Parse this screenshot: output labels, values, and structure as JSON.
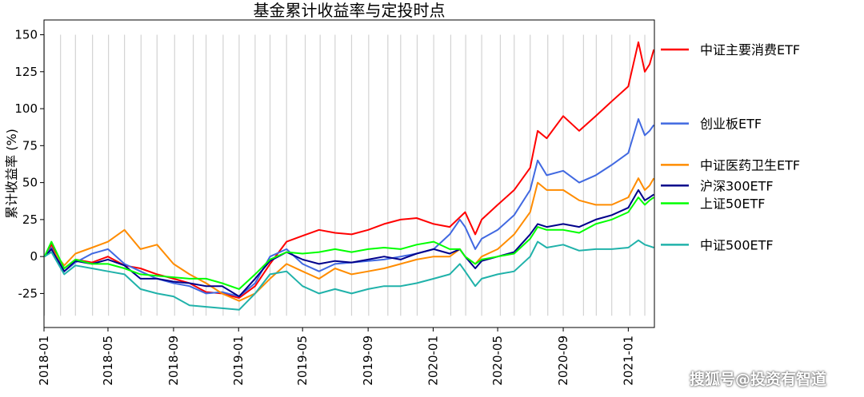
{
  "watermark": "搜狐号@投资有智道",
  "chart_data": {
    "type": "line",
    "title": "基金累计收益率与定投时点",
    "xlabel": "",
    "ylabel": "累计收益率 (%)",
    "xlim": [
      "2018-01-01",
      "2021-02-19"
    ],
    "ylim": [
      -48,
      160
    ],
    "yticks": [
      -25,
      0,
      25,
      50,
      75,
      100,
      125,
      150
    ],
    "xticks": [
      "2018-01",
      "2018-05",
      "2018-09",
      "2019-01",
      "2019-05",
      "2019-09",
      "2020-01",
      "2020-05",
      "2020-09",
      "2021-01"
    ],
    "grid": false,
    "legend": "right",
    "invest_lines": [
      "2018-01-02",
      "2018-02-01",
      "2018-03-01",
      "2018-04-02",
      "2018-05-02",
      "2018-06-01",
      "2018-07-02",
      "2018-08-01",
      "2018-09-03",
      "2018-10-08",
      "2018-11-01",
      "2018-12-03",
      "2019-01-02",
      "2019-02-01",
      "2019-03-01",
      "2019-04-01",
      "2019-05-06",
      "2019-06-03",
      "2019-07-01",
      "2019-08-01",
      "2019-09-02",
      "2019-10-08",
      "2019-11-01",
      "2019-12-02",
      "2020-01-02",
      "2020-02-03",
      "2020-03-02",
      "2020-04-01",
      "2020-05-06",
      "2020-06-01",
      "2020-07-01",
      "2020-08-03",
      "2020-09-01",
      "2020-10-09",
      "2020-11-02",
      "2020-12-01",
      "2021-01-04",
      "2021-02-01"
    ],
    "invest_line_range": [
      -40,
      150
    ],
    "series": [
      {
        "name": "中证主要消费ETF",
        "color": "#ff0000",
        "legend_y": 140,
        "points": [
          [
            "2018-01-02",
            0
          ],
          [
            "2018-01-15",
            8
          ],
          [
            "2018-02-08",
            -8
          ],
          [
            "2018-03-01",
            -2
          ],
          [
            "2018-04-01",
            -4
          ],
          [
            "2018-05-01",
            0
          ],
          [
            "2018-06-01",
            -6
          ],
          [
            "2018-07-01",
            -8
          ],
          [
            "2018-08-01",
            -12
          ],
          [
            "2018-09-01",
            -15
          ],
          [
            "2018-10-01",
            -18
          ],
          [
            "2018-11-01",
            -24
          ],
          [
            "2018-12-01",
            -25
          ],
          [
            "2019-01-02",
            -28
          ],
          [
            "2019-02-01",
            -20
          ],
          [
            "2019-03-01",
            -5
          ],
          [
            "2019-04-01",
            10
          ],
          [
            "2019-05-01",
            14
          ],
          [
            "2019-06-01",
            18
          ],
          [
            "2019-07-01",
            16
          ],
          [
            "2019-08-01",
            15
          ],
          [
            "2019-09-01",
            18
          ],
          [
            "2019-10-01",
            22
          ],
          [
            "2019-11-01",
            25
          ],
          [
            "2019-12-01",
            26
          ],
          [
            "2020-01-02",
            22
          ],
          [
            "2020-02-01",
            20
          ],
          [
            "2020-03-01",
            30
          ],
          [
            "2020-03-20",
            15
          ],
          [
            "2020-04-01",
            25
          ],
          [
            "2020-05-01",
            35
          ],
          [
            "2020-06-01",
            45
          ],
          [
            "2020-07-01",
            60
          ],
          [
            "2020-07-15",
            85
          ],
          [
            "2020-08-01",
            80
          ],
          [
            "2020-09-01",
            95
          ],
          [
            "2020-10-01",
            85
          ],
          [
            "2020-11-01",
            95
          ],
          [
            "2020-12-01",
            105
          ],
          [
            "2021-01-01",
            115
          ],
          [
            "2021-01-20",
            145
          ],
          [
            "2021-02-01",
            125
          ],
          [
            "2021-02-10",
            130
          ],
          [
            "2021-02-18",
            140
          ]
        ]
      },
      {
        "name": "创业板ETF",
        "color": "#4169e1",
        "legend_y": 90,
        "points": [
          [
            "2018-01-02",
            0
          ],
          [
            "2018-01-15",
            6
          ],
          [
            "2018-02-08",
            -10
          ],
          [
            "2018-03-01",
            -4
          ],
          [
            "2018-04-01",
            2
          ],
          [
            "2018-05-01",
            5
          ],
          [
            "2018-06-01",
            -5
          ],
          [
            "2018-07-01",
            -10
          ],
          [
            "2018-08-01",
            -15
          ],
          [
            "2018-09-01",
            -18
          ],
          [
            "2018-10-01",
            -20
          ],
          [
            "2018-11-01",
            -25
          ],
          [
            "2018-12-01",
            -24
          ],
          [
            "2019-01-02",
            -27
          ],
          [
            "2019-02-01",
            -18
          ],
          [
            "2019-03-01",
            0
          ],
          [
            "2019-04-01",
            5
          ],
          [
            "2019-05-01",
            -5
          ],
          [
            "2019-06-01",
            -10
          ],
          [
            "2019-07-01",
            -5
          ],
          [
            "2019-08-01",
            -4
          ],
          [
            "2019-09-01",
            -3
          ],
          [
            "2019-10-01",
            -2
          ],
          [
            "2019-11-01",
            0
          ],
          [
            "2019-12-01",
            2
          ],
          [
            "2020-01-02",
            5
          ],
          [
            "2020-02-01",
            15
          ],
          [
            "2020-02-20",
            25
          ],
          [
            "2020-03-01",
            20
          ],
          [
            "2020-03-20",
            5
          ],
          [
            "2020-04-01",
            12
          ],
          [
            "2020-05-01",
            18
          ],
          [
            "2020-06-01",
            28
          ],
          [
            "2020-07-01",
            45
          ],
          [
            "2020-07-15",
            65
          ],
          [
            "2020-08-01",
            55
          ],
          [
            "2020-09-01",
            58
          ],
          [
            "2020-10-01",
            50
          ],
          [
            "2020-11-01",
            55
          ],
          [
            "2020-12-01",
            62
          ],
          [
            "2021-01-01",
            70
          ],
          [
            "2021-01-20",
            93
          ],
          [
            "2021-02-01",
            82
          ],
          [
            "2021-02-10",
            85
          ],
          [
            "2021-02-18",
            89
          ]
        ]
      },
      {
        "name": "中证医药卫生ETF",
        "color": "#ff8c00",
        "legend_y": 62,
        "points": [
          [
            "2018-01-02",
            0
          ],
          [
            "2018-01-15",
            5
          ],
          [
            "2018-02-08",
            -6
          ],
          [
            "2018-03-01",
            2
          ],
          [
            "2018-04-01",
            6
          ],
          [
            "2018-05-01",
            10
          ],
          [
            "2018-06-01",
            18
          ],
          [
            "2018-07-01",
            5
          ],
          [
            "2018-08-01",
            8
          ],
          [
            "2018-09-01",
            -5
          ],
          [
            "2018-10-01",
            -12
          ],
          [
            "2018-11-01",
            -18
          ],
          [
            "2018-12-01",
            -25
          ],
          [
            "2019-01-02",
            -30
          ],
          [
            "2019-02-01",
            -25
          ],
          [
            "2019-03-01",
            -15
          ],
          [
            "2019-04-01",
            -5
          ],
          [
            "2019-05-01",
            -10
          ],
          [
            "2019-06-01",
            -15
          ],
          [
            "2019-07-01",
            -8
          ],
          [
            "2019-08-01",
            -12
          ],
          [
            "2019-09-01",
            -10
          ],
          [
            "2019-10-01",
            -8
          ],
          [
            "2019-11-01",
            -5
          ],
          [
            "2019-12-01",
            -2
          ],
          [
            "2020-01-02",
            0
          ],
          [
            "2020-02-01",
            0
          ],
          [
            "2020-02-20",
            5
          ],
          [
            "2020-03-01",
            0
          ],
          [
            "2020-03-20",
            -5
          ],
          [
            "2020-04-01",
            0
          ],
          [
            "2020-05-01",
            5
          ],
          [
            "2020-06-01",
            15
          ],
          [
            "2020-07-01",
            30
          ],
          [
            "2020-07-15",
            50
          ],
          [
            "2020-08-01",
            45
          ],
          [
            "2020-09-01",
            45
          ],
          [
            "2020-10-01",
            38
          ],
          [
            "2020-11-01",
            35
          ],
          [
            "2020-12-01",
            35
          ],
          [
            "2021-01-01",
            40
          ],
          [
            "2021-01-20",
            53
          ],
          [
            "2021-02-01",
            45
          ],
          [
            "2021-02-10",
            48
          ],
          [
            "2021-02-18",
            53
          ]
        ]
      },
      {
        "name": "沪深300ETF",
        "color": "#00008b",
        "legend_y": 48,
        "points": [
          [
            "2018-01-02",
            0
          ],
          [
            "2018-01-15",
            5
          ],
          [
            "2018-02-08",
            -10
          ],
          [
            "2018-03-01",
            -3
          ],
          [
            "2018-04-01",
            -5
          ],
          [
            "2018-05-01",
            -2
          ],
          [
            "2018-06-01",
            -6
          ],
          [
            "2018-07-01",
            -15
          ],
          [
            "2018-08-01",
            -15
          ],
          [
            "2018-09-01",
            -17
          ],
          [
            "2018-10-01",
            -18
          ],
          [
            "2018-11-01",
            -20
          ],
          [
            "2018-12-01",
            -20
          ],
          [
            "2019-01-02",
            -27
          ],
          [
            "2019-02-01",
            -15
          ],
          [
            "2019-03-01",
            -3
          ],
          [
            "2019-04-01",
            3
          ],
          [
            "2019-05-01",
            -2
          ],
          [
            "2019-06-01",
            -5
          ],
          [
            "2019-07-01",
            -3
          ],
          [
            "2019-08-01",
            -4
          ],
          [
            "2019-09-01",
            -2
          ],
          [
            "2019-10-01",
            0
          ],
          [
            "2019-11-01",
            -2
          ],
          [
            "2019-12-01",
            2
          ],
          [
            "2020-01-02",
            5
          ],
          [
            "2020-02-01",
            2
          ],
          [
            "2020-02-20",
            5
          ],
          [
            "2020-03-01",
            0
          ],
          [
            "2020-03-20",
            -8
          ],
          [
            "2020-04-01",
            -3
          ],
          [
            "2020-05-01",
            0
          ],
          [
            "2020-06-01",
            3
          ],
          [
            "2020-07-01",
            15
          ],
          [
            "2020-07-15",
            22
          ],
          [
            "2020-08-01",
            20
          ],
          [
            "2020-09-01",
            22
          ],
          [
            "2020-10-01",
            20
          ],
          [
            "2020-11-01",
            25
          ],
          [
            "2020-12-01",
            28
          ],
          [
            "2021-01-01",
            33
          ],
          [
            "2021-01-20",
            45
          ],
          [
            "2021-02-01",
            38
          ],
          [
            "2021-02-10",
            40
          ],
          [
            "2021-02-18",
            42
          ]
        ]
      },
      {
        "name": "上证50ETF",
        "color": "#00ff00",
        "legend_y": 36,
        "points": [
          [
            "2018-01-02",
            0
          ],
          [
            "2018-01-15",
            10
          ],
          [
            "2018-02-08",
            -8
          ],
          [
            "2018-03-01",
            -2
          ],
          [
            "2018-04-01",
            -5
          ],
          [
            "2018-05-01",
            -5
          ],
          [
            "2018-06-01",
            -8
          ],
          [
            "2018-07-01",
            -12
          ],
          [
            "2018-08-01",
            -13
          ],
          [
            "2018-09-01",
            -14
          ],
          [
            "2018-10-01",
            -15
          ],
          [
            "2018-11-01",
            -15
          ],
          [
            "2018-12-01",
            -18
          ],
          [
            "2019-01-02",
            -22
          ],
          [
            "2019-02-01",
            -12
          ],
          [
            "2019-03-01",
            -2
          ],
          [
            "2019-04-01",
            3
          ],
          [
            "2019-05-01",
            2
          ],
          [
            "2019-06-01",
            3
          ],
          [
            "2019-07-01",
            5
          ],
          [
            "2019-08-01",
            3
          ],
          [
            "2019-09-01",
            5
          ],
          [
            "2019-10-01",
            6
          ],
          [
            "2019-11-01",
            5
          ],
          [
            "2019-12-01",
            8
          ],
          [
            "2020-01-02",
            10
          ],
          [
            "2020-02-01",
            5
          ],
          [
            "2020-02-20",
            5
          ],
          [
            "2020-03-01",
            0
          ],
          [
            "2020-03-20",
            -5
          ],
          [
            "2020-04-01",
            -2
          ],
          [
            "2020-05-01",
            0
          ],
          [
            "2020-06-01",
            2
          ],
          [
            "2020-07-01",
            12
          ],
          [
            "2020-07-15",
            20
          ],
          [
            "2020-08-01",
            18
          ],
          [
            "2020-09-01",
            18
          ],
          [
            "2020-10-01",
            16
          ],
          [
            "2020-11-01",
            22
          ],
          [
            "2020-12-01",
            25
          ],
          [
            "2021-01-01",
            30
          ],
          [
            "2021-01-20",
            40
          ],
          [
            "2021-02-01",
            35
          ],
          [
            "2021-02-10",
            38
          ],
          [
            "2021-02-18",
            40
          ]
        ]
      },
      {
        "name": "中证500ETF",
        "color": "#20b2aa",
        "legend_y": 8,
        "points": [
          [
            "2018-01-02",
            0
          ],
          [
            "2018-01-15",
            3
          ],
          [
            "2018-02-08",
            -12
          ],
          [
            "2018-03-01",
            -6
          ],
          [
            "2018-04-01",
            -8
          ],
          [
            "2018-05-01",
            -10
          ],
          [
            "2018-06-01",
            -12
          ],
          [
            "2018-07-01",
            -22
          ],
          [
            "2018-08-01",
            -25
          ],
          [
            "2018-09-01",
            -27
          ],
          [
            "2018-10-01",
            -33
          ],
          [
            "2018-11-01",
            -34
          ],
          [
            "2018-12-01",
            -35
          ],
          [
            "2019-01-02",
            -36
          ],
          [
            "2019-02-01",
            -25
          ],
          [
            "2019-03-01",
            -12
          ],
          [
            "2019-04-01",
            -10
          ],
          [
            "2019-05-01",
            -20
          ],
          [
            "2019-06-01",
            -25
          ],
          [
            "2019-07-01",
            -22
          ],
          [
            "2019-08-01",
            -25
          ],
          [
            "2019-09-01",
            -22
          ],
          [
            "2019-10-01",
            -20
          ],
          [
            "2019-11-01",
            -20
          ],
          [
            "2019-12-01",
            -18
          ],
          [
            "2020-01-02",
            -15
          ],
          [
            "2020-02-01",
            -12
          ],
          [
            "2020-02-20",
            -5
          ],
          [
            "2020-03-01",
            -10
          ],
          [
            "2020-03-20",
            -20
          ],
          [
            "2020-04-01",
            -15
          ],
          [
            "2020-05-01",
            -12
          ],
          [
            "2020-06-01",
            -10
          ],
          [
            "2020-07-01",
            0
          ],
          [
            "2020-07-15",
            10
          ],
          [
            "2020-08-01",
            6
          ],
          [
            "2020-09-01",
            8
          ],
          [
            "2020-10-01",
            4
          ],
          [
            "2020-11-01",
            5
          ],
          [
            "2020-12-01",
            5
          ],
          [
            "2021-01-01",
            6
          ],
          [
            "2021-01-20",
            11
          ],
          [
            "2021-02-01",
            8
          ],
          [
            "2021-02-10",
            7
          ],
          [
            "2021-02-18",
            6
          ]
        ]
      }
    ]
  }
}
